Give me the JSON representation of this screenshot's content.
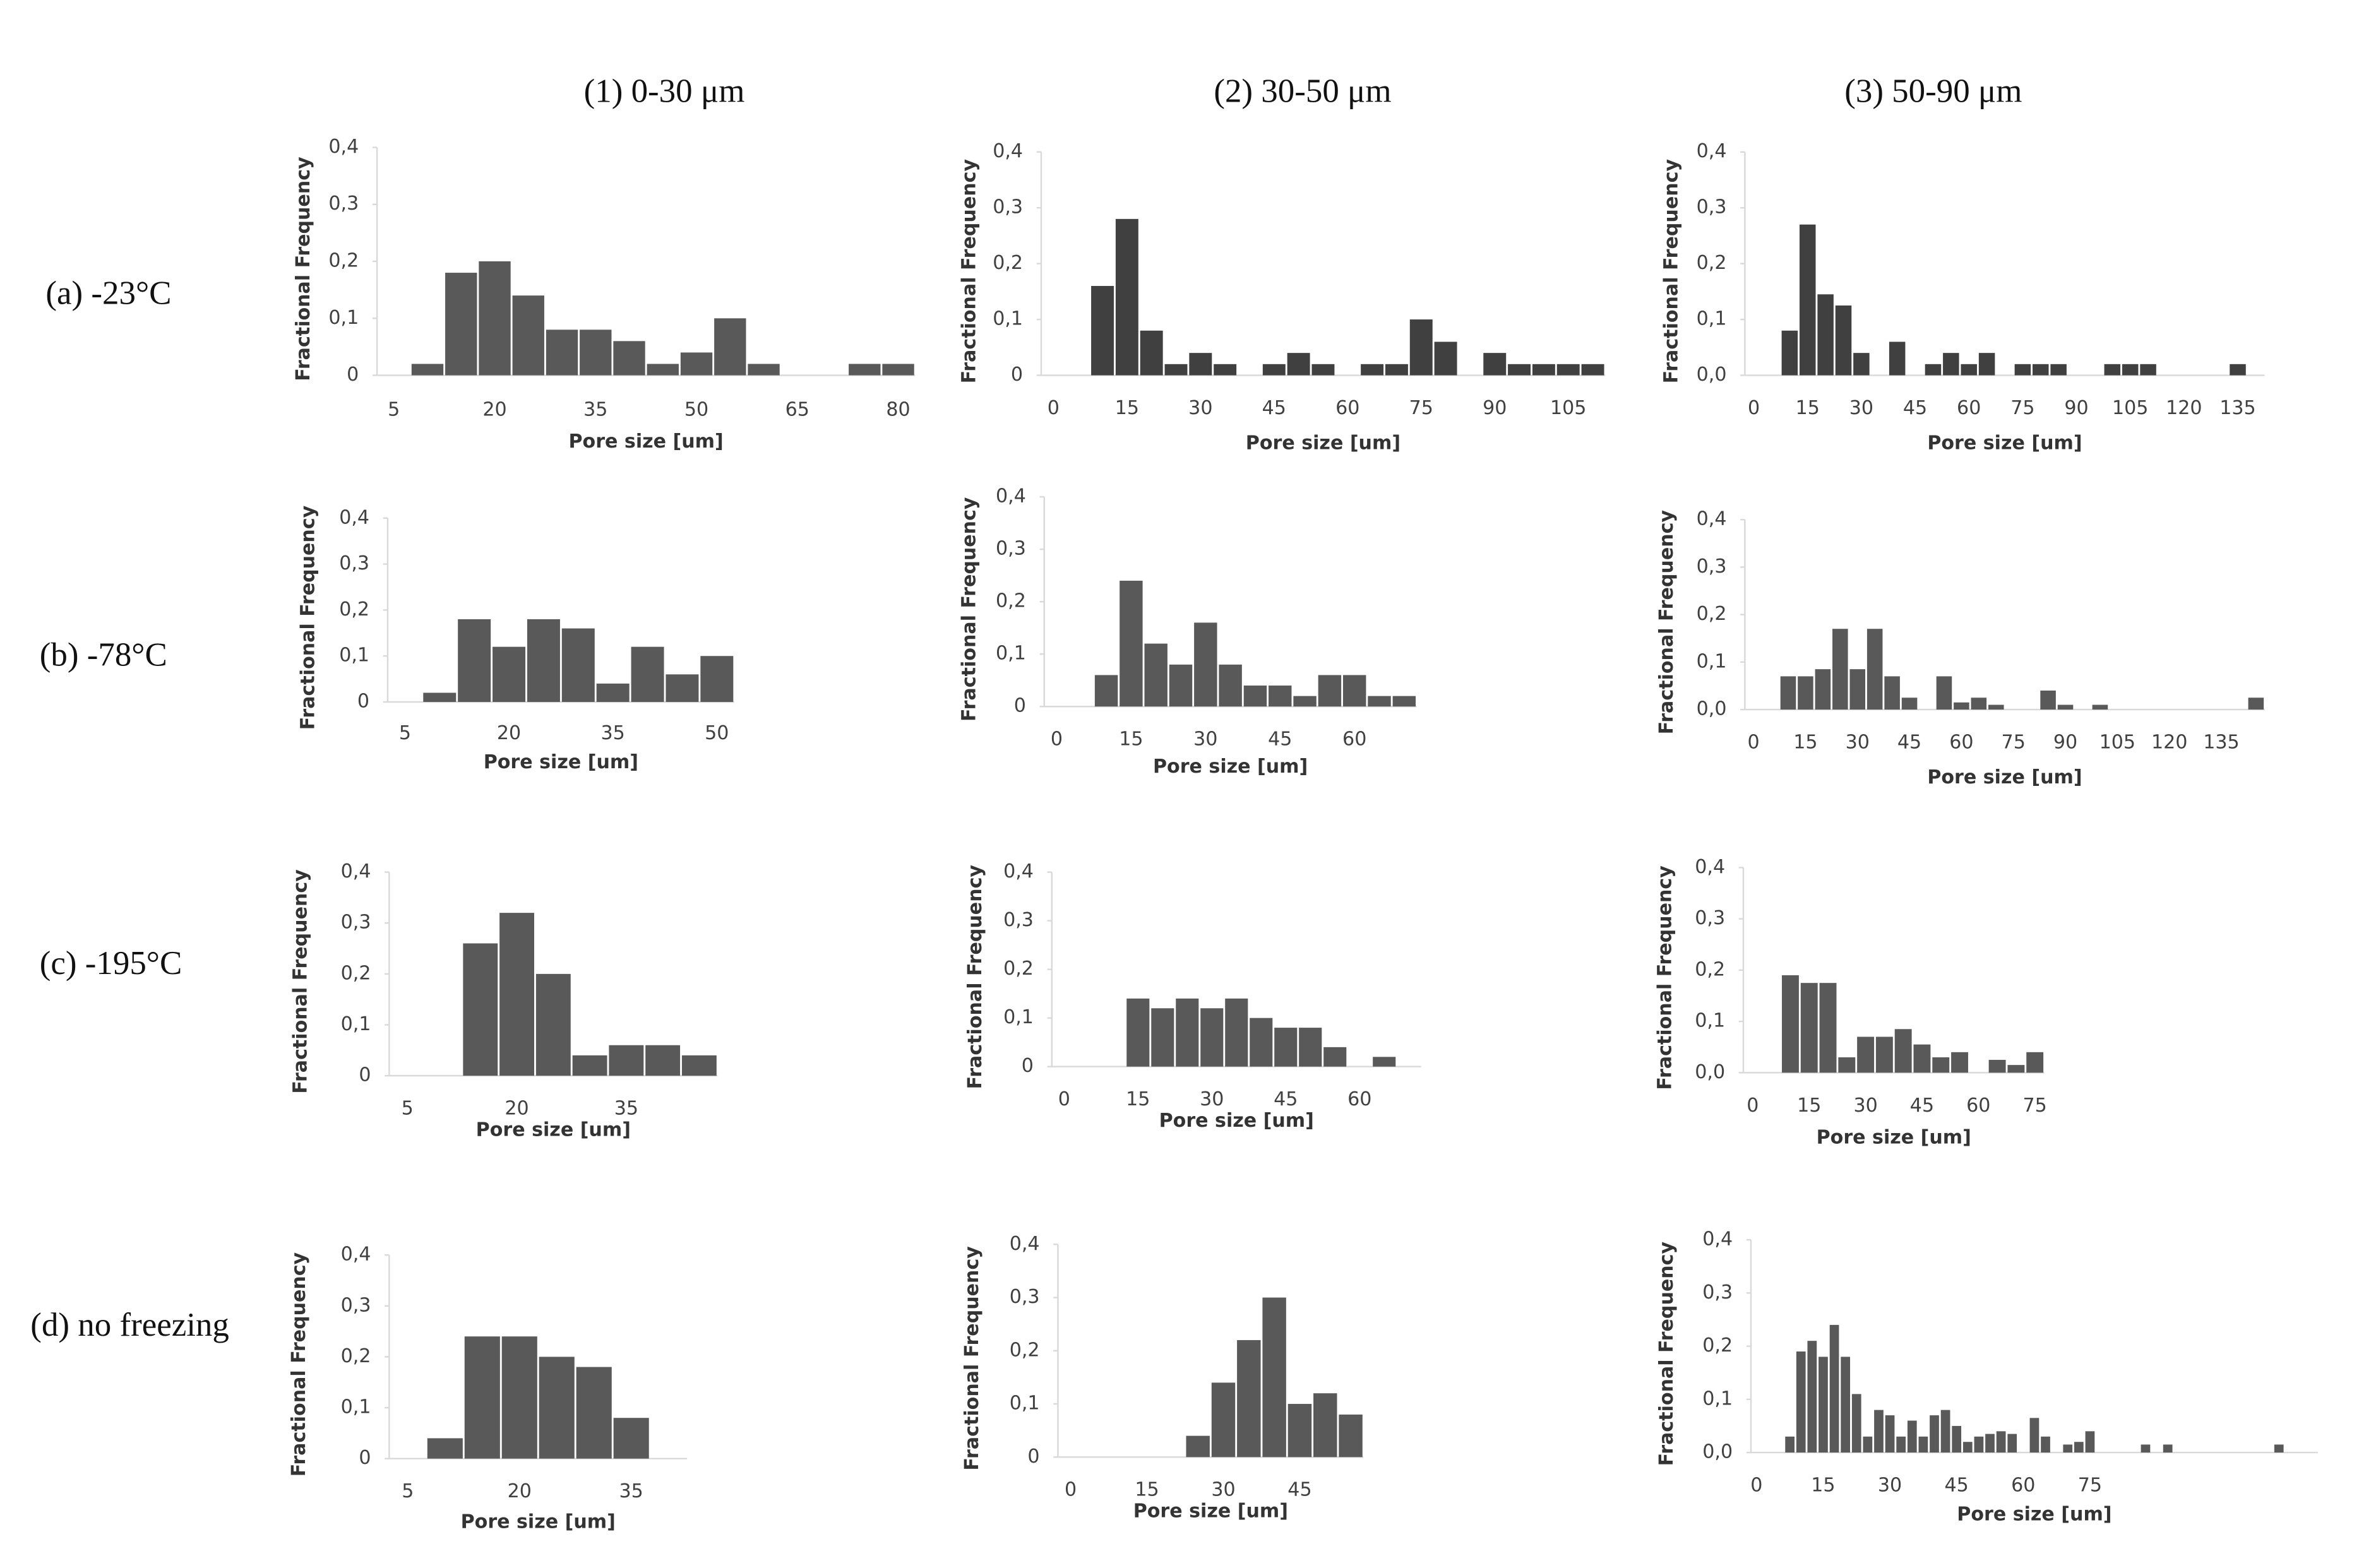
{
  "column_titles": [
    "(1) 0-30 μm",
    "(2) 30-50 μm",
    "(3) 50-90 μm"
  ],
  "row_labels": [
    "(a) -23°C",
    "(b) -78°C",
    "(c) -195°C",
    "(d) no freezing"
  ],
  "chart_data": [
    {
      "type": "bar",
      "x_label": "Pore size [um]",
      "y_label": "Fractional Frequency",
      "color": "#595959",
      "categories": [
        5,
        null,
        null,
        20,
        null,
        null,
        35,
        null,
        null,
        50,
        null,
        null,
        65,
        null,
        null,
        80
      ],
      "values": [
        0,
        0.02,
        0.18,
        0.2,
        0.14,
        0.08,
        0.08,
        0.06,
        0.02,
        0.04,
        0.1,
        0.02,
        0,
        0,
        0.02,
        0.02
      ],
      "ylim": [
        0,
        0.4
      ],
      "yticks": [
        0,
        {
          "value": 0.1,
          "label": "0,1"
        },
        {
          "value": 0.2,
          "label": "0,2"
        },
        {
          "value": 0.3,
          "label": "0,3"
        },
        {
          "value": 0.4,
          "label": "0,4"
        }
      ]
    },
    {
      "type": "bar",
      "x_label": "Pore size [um]",
      "y_label": "Fractional Frequency",
      "color": "#404040",
      "categories": [
        0,
        null,
        null,
        15,
        null,
        null,
        30,
        null,
        null,
        45,
        null,
        null,
        60,
        null,
        null,
        75,
        null,
        null,
        90,
        null,
        null,
        105,
        null
      ],
      "values": [
        0,
        0,
        0.16,
        0.28,
        0.08,
        0.02,
        0.04,
        0.02,
        0,
        0.02,
        0.04,
        0.02,
        0,
        0.02,
        0.02,
        0.1,
        0.06,
        0,
        0.04,
        0.02,
        0.02,
        0.02,
        0.02
      ],
      "ylim": [
        0,
        0.4
      ],
      "yticks": [
        0,
        {
          "value": 0.1,
          "label": "0,1"
        },
        {
          "value": 0.2,
          "label": "0,2"
        },
        {
          "value": 0.3,
          "label": "0,3"
        },
        {
          "value": 0.4,
          "label": "0,4"
        }
      ]
    },
    {
      "type": "bar",
      "x_label": "Pore size [um]",
      "y_label": "Fractional Frequency",
      "color": "#404040",
      "categories": [
        0,
        null,
        null,
        15,
        null,
        null,
        30,
        null,
        null,
        45,
        null,
        null,
        60,
        null,
        null,
        75,
        null,
        null,
        90,
        null,
        null,
        105,
        null,
        null,
        120,
        null,
        null,
        135,
        null
      ],
      "values": [
        0,
        0,
        0.08,
        0.27,
        0.145,
        0.125,
        0.04,
        0,
        0.06,
        0,
        0.02,
        0.04,
        0.02,
        0.04,
        0,
        0.02,
        0.02,
        0.02,
        0,
        0,
        0.02,
        0.02,
        0.02,
        0,
        0,
        0,
        0,
        0.02,
        0
      ],
      "ylim": [
        0,
        0.4
      ],
      "yticks": [
        {
          "value": 0,
          "label": "0,0"
        },
        {
          "value": 0.1,
          "label": "0,1"
        },
        {
          "value": 0.2,
          "label": "0,2"
        },
        {
          "value": 0.3,
          "label": "0,3"
        },
        {
          "value": 0.4,
          "label": "0,4"
        }
      ]
    },
    {
      "type": "bar",
      "x_label": "Pore size [um]",
      "y_label": "Fractional Frequency",
      "color": "#595959",
      "categories": [
        5,
        null,
        null,
        20,
        null,
        null,
        35,
        null,
        null,
        50
      ],
      "values": [
        0,
        0.02,
        0.18,
        0.12,
        0.18,
        0.16,
        0.04,
        0.12,
        0.06,
        0.1
      ],
      "ylim": [
        0,
        0.4
      ],
      "yticks": [
        0,
        {
          "value": 0.1,
          "label": "0,1"
        },
        {
          "value": 0.2,
          "label": "0,2"
        },
        {
          "value": 0.3,
          "label": "0,3"
        },
        {
          "value": 0.4,
          "label": "0,4"
        }
      ]
    },
    {
      "type": "bar",
      "x_label": "Pore size [um]",
      "y_label": "Fractional Frequency",
      "color": "#595959",
      "categories": [
        0,
        null,
        null,
        15,
        null,
        null,
        30,
        null,
        null,
        45,
        null,
        null,
        60,
        null,
        null
      ],
      "values": [
        0,
        0,
        0.06,
        0.24,
        0.12,
        0.08,
        0.16,
        0.08,
        0.04,
        0.04,
        0.02,
        0.06,
        0.06,
        0.02,
        0.02
      ],
      "ylim": [
        0,
        0.4
      ],
      "yticks": [
        0,
        {
          "value": 0.1,
          "label": "0,1"
        },
        {
          "value": 0.2,
          "label": "0,2"
        },
        {
          "value": 0.3,
          "label": "0,3"
        },
        {
          "value": 0.4,
          "label": "0,4"
        }
      ]
    },
    {
      "type": "bar",
      "x_label": "Pore size [um]",
      "y_label": "Fractional Frequency",
      "color": "#595959",
      "categories": [
        0,
        null,
        null,
        15,
        null,
        null,
        30,
        null,
        null,
        45,
        null,
        null,
        60,
        null,
        null,
        75,
        null,
        null,
        90,
        null,
        null,
        105,
        null,
        null,
        120,
        null,
        null,
        135,
        null,
        null
      ],
      "values": [
        0,
        0,
        0.07,
        0.07,
        0.085,
        0.17,
        0.085,
        0.17,
        0.07,
        0.025,
        0,
        0.07,
        0.015,
        0.025,
        0.01,
        0,
        0,
        0.04,
        0.01,
        0,
        0.01,
        0,
        0,
        0,
        0,
        0,
        0,
        0,
        0,
        0.025
      ],
      "ylim": [
        0,
        0.4
      ],
      "yticks": [
        {
          "value": 0,
          "label": "0,0"
        },
        {
          "value": 0.1,
          "label": "0,1"
        },
        {
          "value": 0.2,
          "label": "0,2"
        },
        {
          "value": 0.3,
          "label": "0,3"
        },
        {
          "value": 0.4,
          "label": "0,4"
        }
      ]
    },
    {
      "type": "bar",
      "x_label": "Pore size [um]",
      "y_label": "Fractional Frequency",
      "color": "#595959",
      "categories": [
        5,
        null,
        null,
        20,
        null,
        null,
        35,
        null,
        null
      ],
      "values": [
        0,
        0,
        0.26,
        0.32,
        0.2,
        0.04,
        0.06,
        0.06,
        0.04
      ],
      "ylim": [
        0,
        0.4
      ],
      "yticks": [
        0,
        {
          "value": 0.1,
          "label": "0,1"
        },
        {
          "value": 0.2,
          "label": "0,2"
        },
        {
          "value": 0.3,
          "label": "0,3"
        },
        {
          "value": 0.4,
          "label": "0,4"
        }
      ]
    },
    {
      "type": "bar",
      "x_label": "Pore size [um]",
      "y_label": "Fractional Frequency",
      "color": "#595959",
      "categories": [
        0,
        null,
        null,
        15,
        null,
        null,
        30,
        null,
        null,
        45,
        null,
        null,
        60,
        null,
        null
      ],
      "values": [
        0,
        0,
        0,
        0.14,
        0.12,
        0.14,
        0.12,
        0.14,
        0.1,
        0.08,
        0.08,
        0.04,
        0,
        0.02,
        0
      ],
      "ylim": [
        0,
        0.4
      ],
      "yticks": [
        0,
        {
          "value": 0.1,
          "label": "0,1"
        },
        {
          "value": 0.2,
          "label": "0,2"
        },
        {
          "value": 0.3,
          "label": "0,3"
        },
        {
          "value": 0.4,
          "label": "0,4"
        }
      ]
    },
    {
      "type": "bar",
      "x_label": "Pore size [um]",
      "y_label": "Fractional Frequency",
      "color": "#595959",
      "categories": [
        0,
        null,
        null,
        15,
        null,
        null,
        30,
        null,
        null,
        45,
        null,
        null,
        60,
        null,
        null,
        75
      ],
      "values": [
        0,
        0,
        0.19,
        0.175,
        0.175,
        0.03,
        0.07,
        0.07,
        0.085,
        0.055,
        0.03,
        0.04,
        0,
        0.025,
        0.015,
        0.04
      ],
      "ylim": [
        0,
        0.4
      ],
      "yticks": [
        {
          "value": 0,
          "label": "0,0"
        },
        {
          "value": 0.1,
          "label": "0,1"
        },
        {
          "value": 0.2,
          "label": "0,2"
        },
        {
          "value": 0.3,
          "label": "0,3"
        },
        {
          "value": 0.4,
          "label": "0,4"
        }
      ]
    },
    {
      "type": "bar",
      "x_label": "Pore size [um]",
      "y_label": "Fractional Frequency",
      "color": "#595959",
      "categories": [
        5,
        null,
        null,
        20,
        null,
        null,
        35,
        null
      ],
      "values": [
        0,
        0.04,
        0.24,
        0.24,
        0.2,
        0.18,
        0.08,
        0
      ],
      "ylim": [
        0,
        0.4
      ],
      "yticks": [
        0,
        {
          "value": 0.1,
          "label": "0,1"
        },
        {
          "value": 0.2,
          "label": "0,2"
        },
        {
          "value": 0.3,
          "label": "0,3"
        },
        {
          "value": 0.4,
          "label": "0,4"
        }
      ]
    },
    {
      "type": "bar",
      "x_label": "Pore size [um]",
      "y_label": "Fractional Frequency",
      "color": "#595959",
      "categories": [
        0,
        null,
        null,
        15,
        null,
        null,
        30,
        null,
        null,
        45,
        null,
        null
      ],
      "values": [
        0,
        0,
        0,
        0,
        0,
        0.04,
        0.14,
        0.22,
        0.3,
        0.1,
        0.12,
        0.08
      ],
      "ylim": [
        0,
        0.4
      ],
      "yticks": [
        0,
        {
          "value": 0.1,
          "label": "0,1"
        },
        {
          "value": 0.2,
          "label": "0,2"
        },
        {
          "value": 0.3,
          "label": "0,3"
        },
        {
          "value": 0.4,
          "label": "0,4"
        }
      ]
    },
    {
      "type": "bar",
      "x_label": "Pore size [um]",
      "y_label": "Fractional Frequency",
      "color": "#595959",
      "categories": [
        0,
        null,
        null,
        null,
        null,
        null,
        15,
        null,
        null,
        null,
        null,
        null,
        30,
        null,
        null,
        null,
        null,
        null,
        45,
        null,
        null,
        null,
        null,
        null,
        60,
        null,
        null,
        null,
        null,
        null,
        75,
        null,
        null,
        null,
        null,
        null,
        null,
        null,
        null,
        null,
        null,
        null,
        null,
        null,
        null,
        null,
        null,
        null,
        null,
        null,
        null
      ],
      "values": [
        0,
        0,
        0,
        0.03,
        0.19,
        0.21,
        0.18,
        0.24,
        0.18,
        0.11,
        0.03,
        0.08,
        0.07,
        0.03,
        0.06,
        0.03,
        0.07,
        0.08,
        0.05,
        0.02,
        0.03,
        0.035,
        0.04,
        0.035,
        0,
        0.065,
        0.03,
        0,
        0.015,
        0.02,
        0.04,
        0,
        0,
        0,
        0,
        0.015,
        0,
        0.015,
        0,
        0,
        0,
        0,
        0,
        0,
        0,
        0,
        0,
        0.015,
        0,
        0,
        0
      ],
      "ylim": [
        0,
        0.4
      ],
      "yticks": [
        {
          "value": 0,
          "label": "0,0"
        },
        {
          "value": 0.1,
          "label": "0,1"
        },
        {
          "value": 0.2,
          "label": "0,2"
        },
        {
          "value": 0.3,
          "label": "0,3"
        },
        {
          "value": 0.4,
          "label": "0,4"
        }
      ]
    }
  ]
}
